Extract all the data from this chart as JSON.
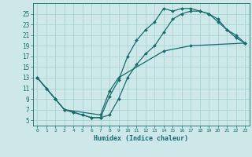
{
  "xlabel": "Humidex (Indice chaleur)",
  "bg_color": "#cce8e8",
  "line_color": "#1a6b6b",
  "grid_color": "#aad4d4",
  "xlim": [
    -0.5,
    23.5
  ],
  "ylim": [
    4,
    27
  ],
  "xticks": [
    0,
    1,
    2,
    3,
    4,
    5,
    6,
    7,
    8,
    9,
    10,
    11,
    12,
    13,
    14,
    15,
    16,
    17,
    18,
    19,
    20,
    21,
    22,
    23
  ],
  "yticks": [
    5,
    7,
    9,
    11,
    13,
    15,
    17,
    19,
    21,
    23,
    25
  ],
  "line1_x": [
    0,
    1,
    2,
    3,
    4,
    5,
    6,
    7,
    8,
    9,
    10,
    11,
    12,
    13,
    14,
    15,
    16,
    17,
    18,
    19,
    20,
    21,
    22,
    23
  ],
  "line1_y": [
    13,
    11,
    9,
    7,
    6.5,
    6,
    5.5,
    5.5,
    9.5,
    12.5,
    17,
    20,
    22,
    23.5,
    26,
    25.5,
    26,
    26,
    25.5,
    25,
    24,
    22,
    20.5,
    19.5
  ],
  "line2_x": [
    0,
    1,
    2,
    3,
    4,
    5,
    6,
    7,
    8,
    9,
    10,
    11,
    12,
    13,
    14,
    15,
    16,
    17,
    18,
    19,
    20,
    21,
    22,
    23
  ],
  "line2_y": [
    13,
    11,
    9,
    7,
    6.5,
    6,
    5.5,
    5.5,
    6,
    9,
    13,
    15.5,
    17.5,
    19,
    21.5,
    24,
    25,
    25.5,
    25.5,
    25,
    23.5,
    22,
    21,
    19.5
  ],
  "line3_x": [
    0,
    2,
    3,
    7,
    8,
    9,
    14,
    17,
    23
  ],
  "line3_y": [
    13,
    9,
    7,
    6,
    10.5,
    13,
    18,
    19,
    19.5
  ],
  "tick_fontsize": 5.5,
  "xlabel_fontsize": 6,
  "marker_size": 2.0,
  "linewidth": 0.9
}
